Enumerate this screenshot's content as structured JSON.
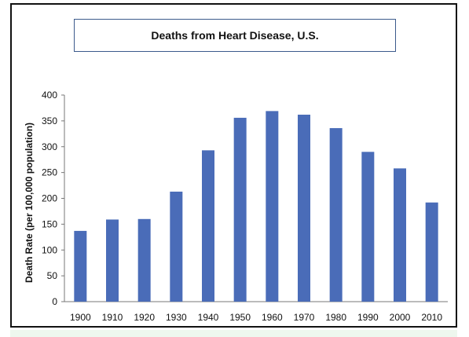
{
  "chart_data": {
    "type": "bar",
    "title": "Deaths from Heart Disease, U.S.",
    "xlabel": "",
    "ylabel": "Death Rate (per 100,000 population)",
    "categories": [
      "1900",
      "1910",
      "1920",
      "1930",
      "1940",
      "1950",
      "1960",
      "1970",
      "1980",
      "1990",
      "2000",
      "2010"
    ],
    "values": [
      137,
      159,
      160,
      213,
      293,
      356,
      369,
      362,
      336,
      290,
      258,
      192
    ],
    "ylim": [
      0,
      400
    ],
    "yticks": [
      0,
      50,
      100,
      150,
      200,
      250,
      300,
      350,
      400
    ],
    "grid": false,
    "legend": "none",
    "bar_color": "#4a6cb8"
  }
}
